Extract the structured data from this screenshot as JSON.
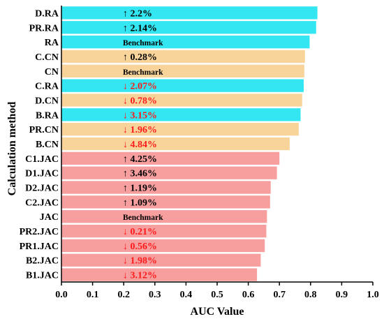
{
  "chart_data": {
    "type": "bar",
    "orientation": "horizontal",
    "xlabel": "AUC Value",
    "ylabel": "Calculation method",
    "xlim": [
      0.0,
      1.0
    ],
    "xticks": [
      "0.0",
      "0.1",
      "0.2",
      "0.3",
      "0.4",
      "0.5",
      "0.6",
      "0.7",
      "0.8",
      "0.9",
      "1.0"
    ],
    "grid": false,
    "colors": {
      "RA": "#33e6f2",
      "CN": "#f9d49a",
      "JAC": "#f79e9e",
      "up_text": "#000000",
      "down_text": "#ff1a1a"
    },
    "bars": [
      {
        "category": "D.RA",
        "value": 0.822,
        "group": "RA",
        "label": "↑ 2.2%",
        "direction": "up"
      },
      {
        "category": "PR.RA",
        "value": 0.818,
        "group": "RA",
        "label": "↑ 2.14%",
        "direction": "up"
      },
      {
        "category": "RA",
        "value": 0.797,
        "group": "RA",
        "label": "Benchmark",
        "direction": "none"
      },
      {
        "category": "C.CN",
        "value": 0.782,
        "group": "CN",
        "label": "↑ 0.28%",
        "direction": "up"
      },
      {
        "category": "CN",
        "value": 0.78,
        "group": "CN",
        "label": "Benchmark",
        "direction": "none"
      },
      {
        "category": "C.RA",
        "value": 0.778,
        "group": "RA",
        "label": "↓ 2.07%",
        "direction": "down"
      },
      {
        "category": "D.CN",
        "value": 0.773,
        "group": "CN",
        "label": "↓ 0.78%",
        "direction": "down"
      },
      {
        "category": "B.RA",
        "value": 0.768,
        "group": "RA",
        "label": "↓ 3.15%",
        "direction": "down"
      },
      {
        "category": "PR.CN",
        "value": 0.762,
        "group": "CN",
        "label": "↓ 1.96%",
        "direction": "down"
      },
      {
        "category": "B.CN",
        "value": 0.733,
        "group": "CN",
        "label": "↓ 4.84%",
        "direction": "down"
      },
      {
        "category": "C1.JAC",
        "value": 0.7,
        "group": "JAC",
        "label": "↑ 4.25%",
        "direction": "up"
      },
      {
        "category": "D1.JAC",
        "value": 0.692,
        "group": "JAC",
        "label": "↑ 3.46%",
        "direction": "up"
      },
      {
        "category": "D2.JAC",
        "value": 0.672,
        "group": "JAC",
        "label": "↑ 1.19%",
        "direction": "up"
      },
      {
        "category": "C2.JAC",
        "value": 0.67,
        "group": "JAC",
        "label": "↑ 1.09%",
        "direction": "up"
      },
      {
        "category": "JAC",
        "value": 0.66,
        "group": "JAC",
        "label": "Benchmark",
        "direction": "none"
      },
      {
        "category": "PR2.JAC",
        "value": 0.658,
        "group": "JAC",
        "label": "↓ 0.21%",
        "direction": "down"
      },
      {
        "category": "PR1.JAC",
        "value": 0.653,
        "group": "JAC",
        "label": "↓ 0.56%",
        "direction": "down"
      },
      {
        "category": "B2.JAC",
        "value": 0.64,
        "group": "JAC",
        "label": "↓ 1.98%",
        "direction": "down"
      },
      {
        "category": "B1.JAC",
        "value": 0.628,
        "group": "JAC",
        "label": "↓ 3.12%",
        "direction": "down"
      }
    ]
  }
}
